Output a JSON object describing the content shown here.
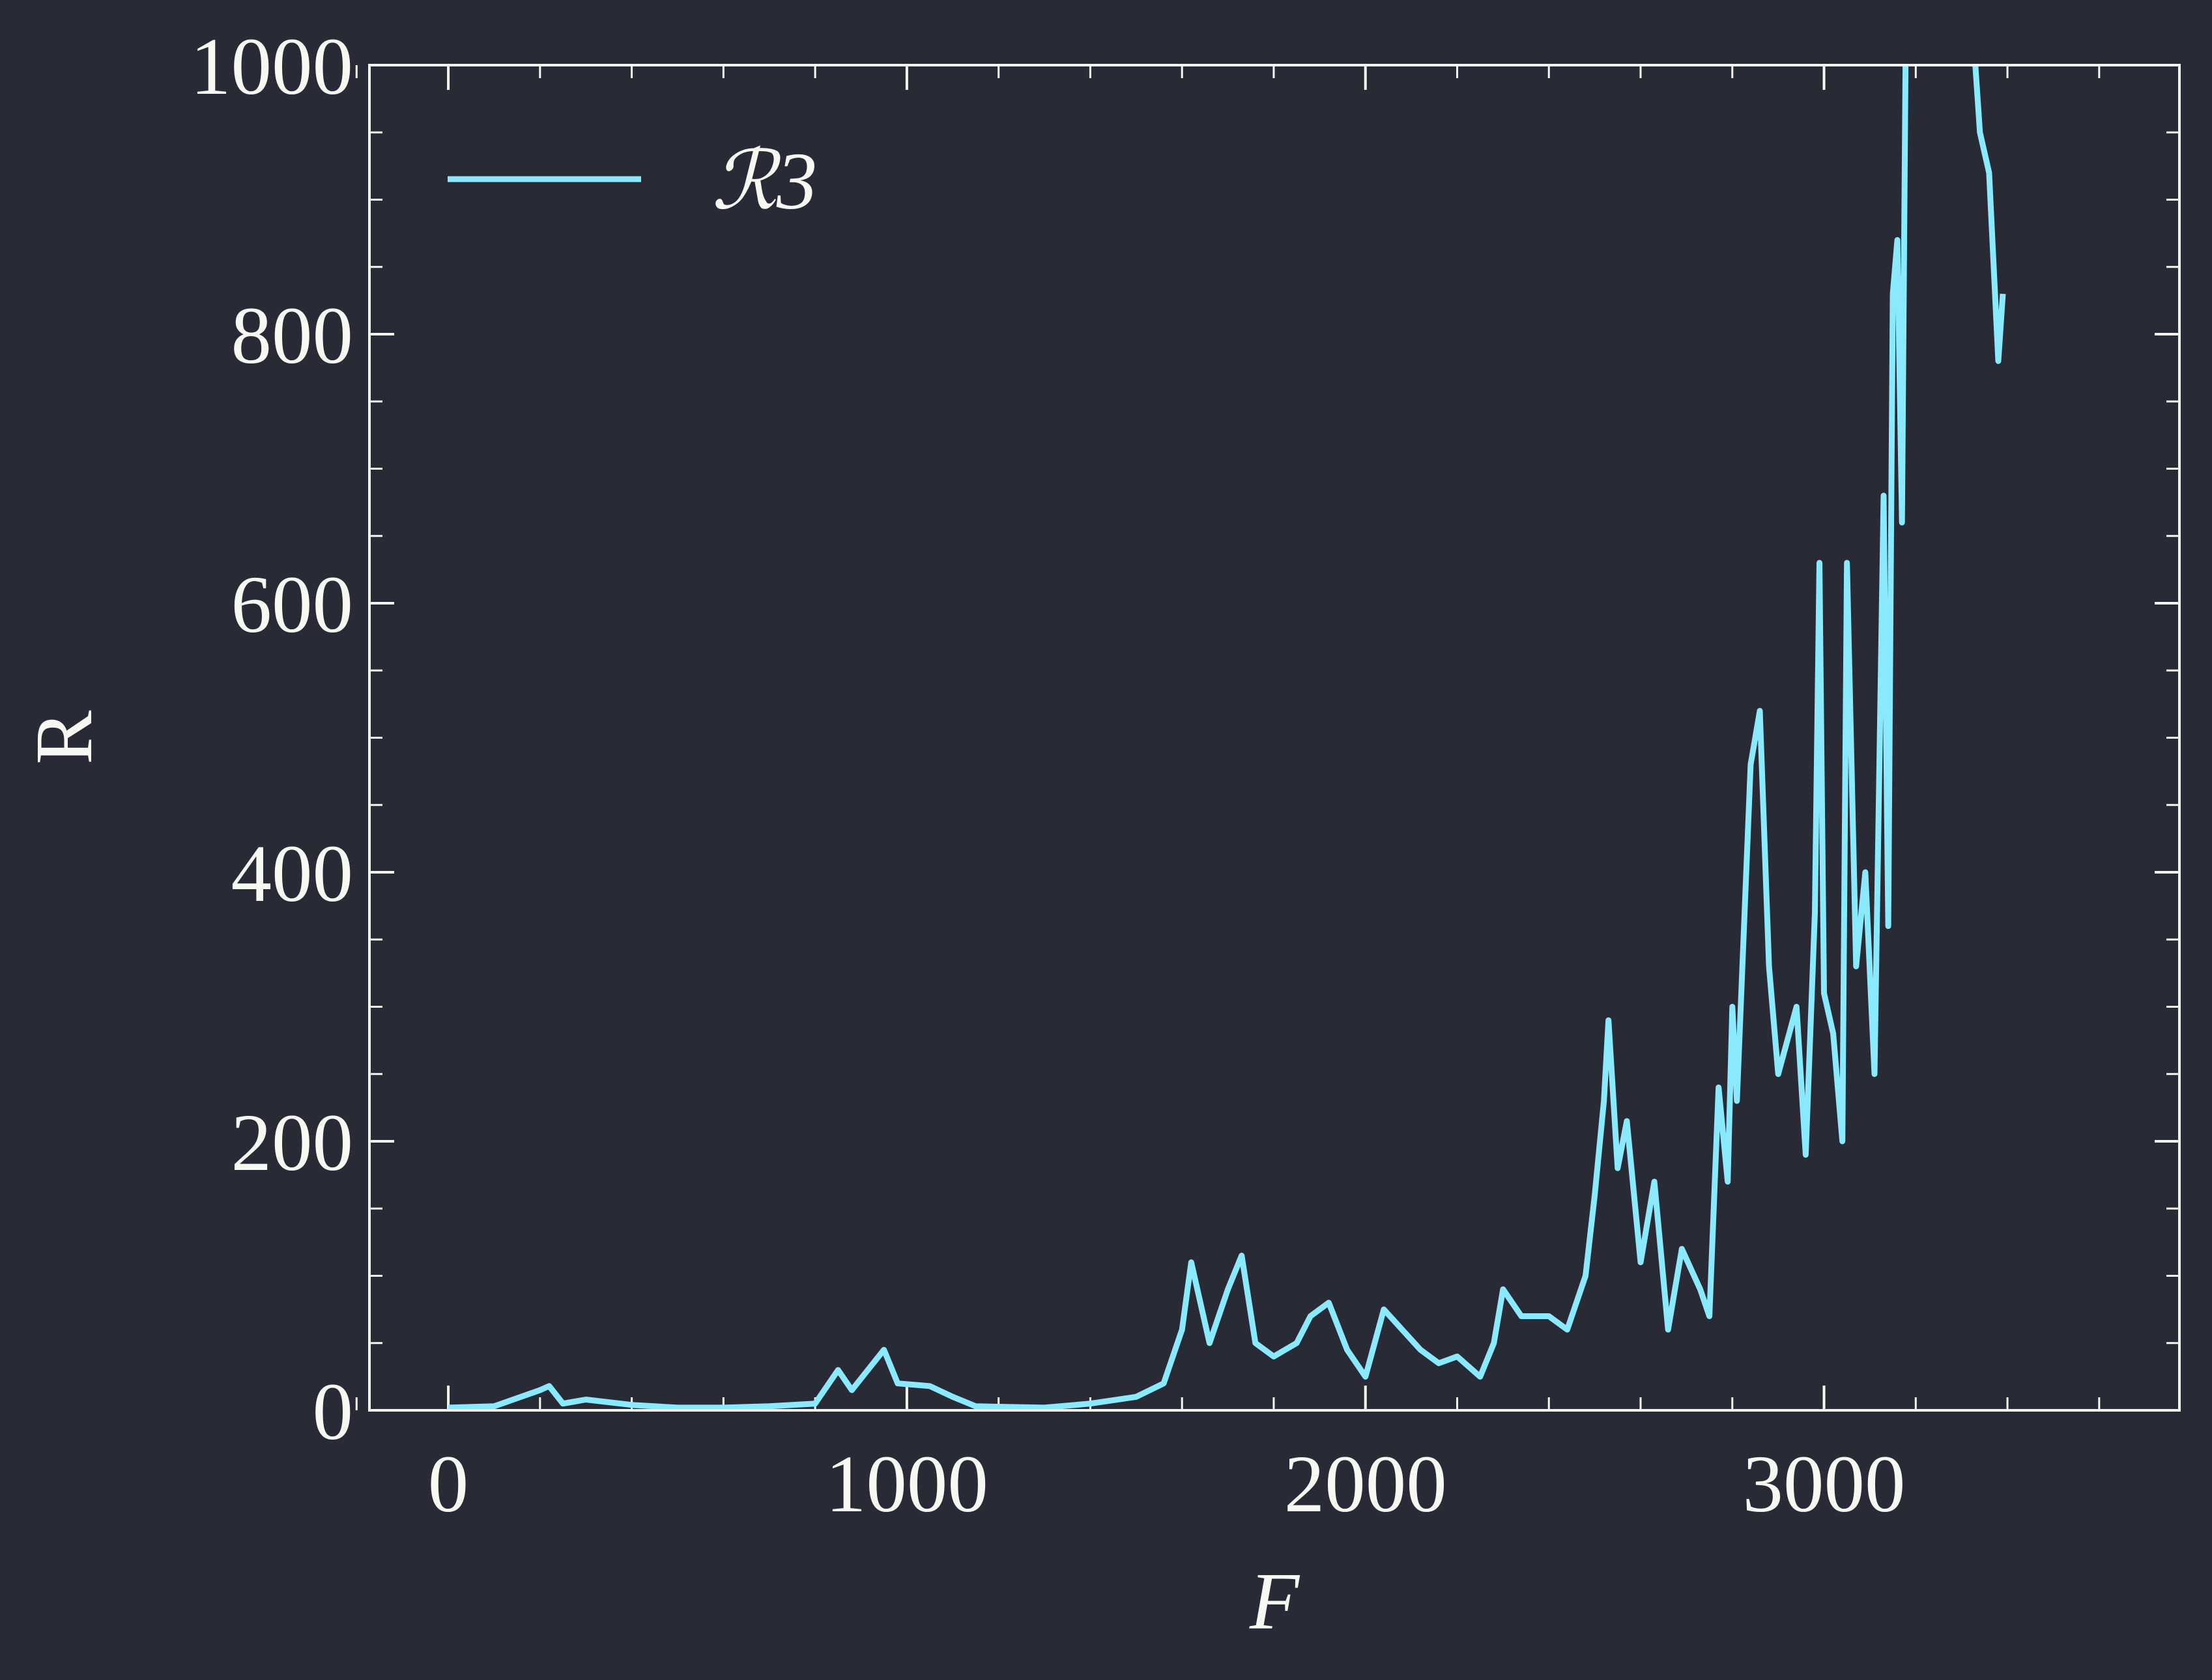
{
  "chart_data": {
    "type": "line",
    "xlabel": "F",
    "ylabel": "R",
    "x": [
      0,
      100,
      200,
      220,
      250,
      300,
      400,
      500,
      600,
      700,
      800,
      850,
      880,
      950,
      980,
      1050,
      1100,
      1150,
      1300,
      1400,
      1500,
      1560,
      1600,
      1620,
      1660,
      1700,
      1730,
      1760,
      1800,
      1850,
      1880,
      1920,
      1960,
      2000,
      2040,
      2080,
      2120,
      2160,
      2200,
      2250,
      2280,
      2300,
      2340,
      2400,
      2440,
      2480,
      2500,
      2520,
      2530,
      2550,
      2570,
      2600,
      2630,
      2660,
      2690,
      2730,
      2750,
      2770,
      2790,
      2800,
      2810,
      2840,
      2860,
      2880,
      2900,
      2940,
      2960,
      2980,
      2990,
      3000,
      3020,
      3040,
      3050,
      3070,
      3090,
      3110,
      3130,
      3140,
      3150,
      3160,
      3170,
      3180,
      3230,
      3300,
      3340,
      3360,
      3380,
      3390
    ],
    "series": [
      {
        "name": "ℛ3",
        "color": "#8be9fd",
        "values": [
          2,
          3,
          15,
          18,
          5,
          8,
          4,
          2,
          2,
          3,
          5,
          30,
          15,
          45,
          20,
          18,
          10,
          3,
          2,
          5,
          10,
          20,
          60,
          110,
          50,
          90,
          115,
          50,
          40,
          50,
          70,
          80,
          45,
          25,
          75,
          60,
          45,
          35,
          40,
          25,
          50,
          90,
          70,
          70,
          60,
          100,
          160,
          230,
          290,
          180,
          215,
          110,
          170,
          60,
          120,
          90,
          70,
          240,
          170,
          300,
          230,
          480,
          520,
          330,
          250,
          300,
          190,
          370,
          630,
          310,
          280,
          200,
          630,
          330,
          400,
          250,
          680,
          360,
          830,
          870,
          660,
          1100,
          1200,
          1150,
          950,
          920,
          780,
          830
        ]
      }
    ],
    "xlim": [
      -172,
      3775
    ],
    "ylim": [
      0,
      1000
    ],
    "xticks": [
      0,
      1000,
      2000,
      3000
    ],
    "yticks": [
      0,
      200,
      400,
      600,
      800,
      1000
    ],
    "legend": "upper left"
  }
}
